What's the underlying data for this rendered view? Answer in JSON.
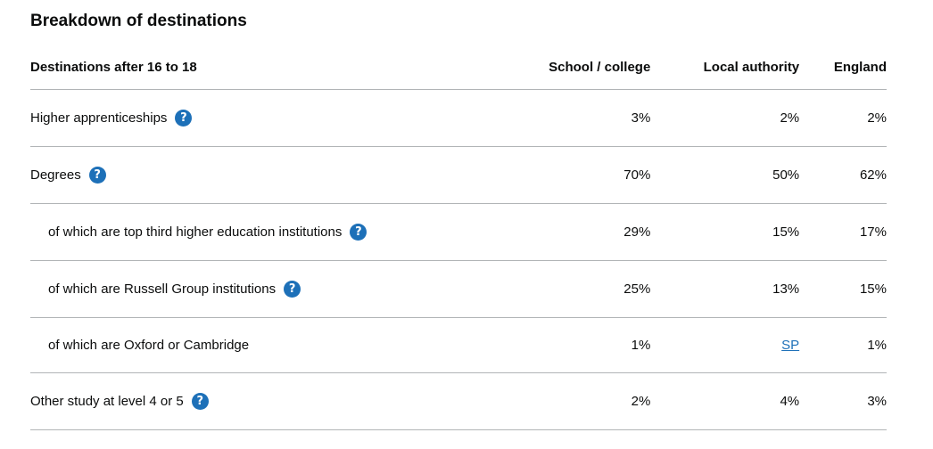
{
  "section": {
    "title": "Breakdown of destinations"
  },
  "table": {
    "headers": {
      "label": "Destinations after 16 to 18",
      "school": "School / college",
      "la": "Local authority",
      "england": "England"
    },
    "rows": [
      {
        "label": "Higher apprenticeships",
        "help": "?",
        "school": "3%",
        "la": "2%",
        "england": "2%"
      },
      {
        "label": "Degrees",
        "help": "?",
        "school": "70%",
        "la": "50%",
        "england": "62%"
      },
      {
        "label": "of which are top third higher education institutions",
        "help": "?",
        "school": "29%",
        "la": "15%",
        "england": "17%"
      },
      {
        "label": "of which are Russell Group institutions",
        "help": "?",
        "school": "25%",
        "la": "13%",
        "england": "15%"
      },
      {
        "label": "of which are Oxford or Cambridge",
        "school": "1%",
        "la": "SP",
        "england": "1%"
      },
      {
        "label": "Other study at level 4 or 5",
        "help": "?",
        "school": "2%",
        "la": "4%",
        "england": "3%"
      }
    ]
  },
  "colors": {
    "help_icon": "#1d70b8",
    "link": "#1d70b8",
    "divider": "#b1b4b6",
    "text": "#0b0c0c"
  }
}
